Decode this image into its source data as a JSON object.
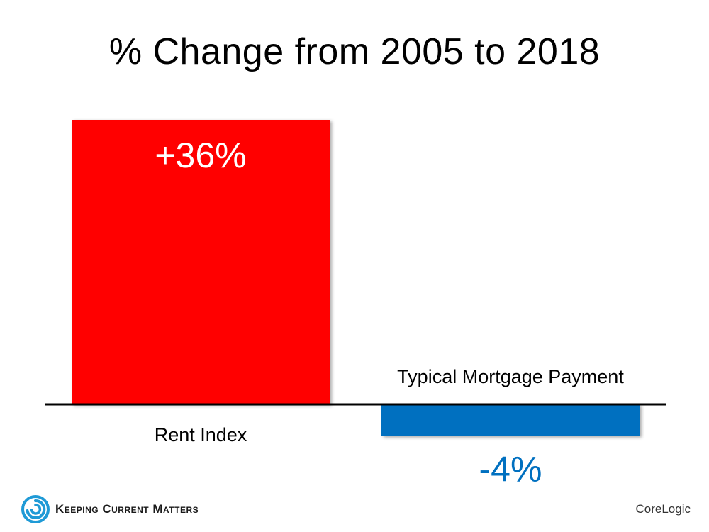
{
  "chart_data": {
    "type": "bar",
    "title": "% Change from 2005 to 2018",
    "categories": [
      "Rent Index",
      "Typical Mortgage Payment"
    ],
    "values": [
      36,
      -4
    ],
    "value_labels": [
      "+36%",
      "-4%"
    ],
    "colors": [
      "#ff0000",
      "#0070c0"
    ],
    "label_colors": [
      "#ffffff",
      "#0070c0"
    ],
    "ylim": [
      -6,
      36
    ],
    "grid": false,
    "legend": "none"
  },
  "footer": {
    "logo_text": "Keeping Current Matters",
    "source": "CoreLogic"
  }
}
